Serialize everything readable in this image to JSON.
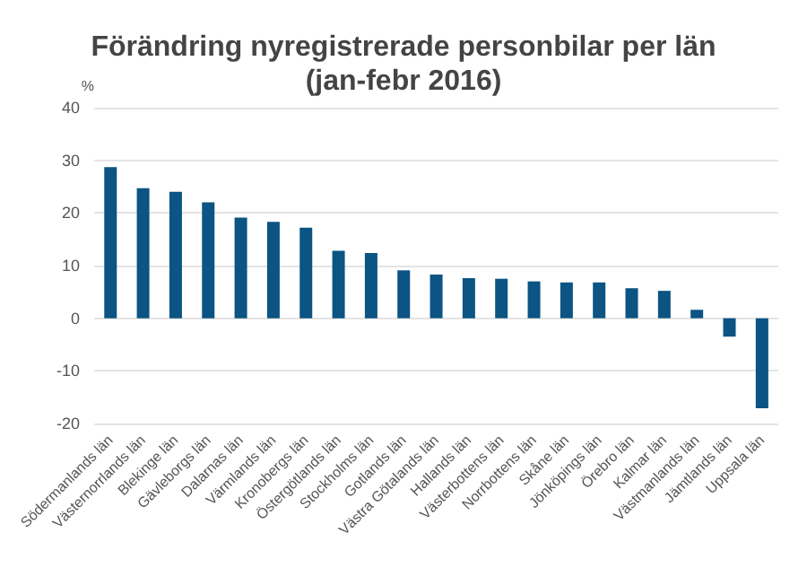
{
  "chart_data": {
    "type": "bar",
    "title": "Förändring nyregistrerade personbilar per län\n(jan-febr 2016)",
    "ylabel": "%",
    "categories": [
      "Södermanlands län",
      "Västernorrlands län",
      "Blekinge län",
      "Gävleborgs län",
      "Dalarnas län",
      "Värmlands län",
      "Kronobergs län",
      "Östergötlands län",
      "Stockholms län",
      "Gotlands län",
      "Västra Götalands län",
      "Hallands län",
      "Västerbottens län",
      "Norrbottens län",
      "Skåne län",
      "Jönköpings län",
      "Örebro län",
      "Kalmar län",
      "Västmanlands län",
      "Jämtlands län",
      "Uppsala län"
    ],
    "values": [
      28.7,
      24.7,
      24.0,
      22.0,
      19.1,
      18.3,
      17.2,
      12.8,
      12.4,
      9.1,
      8.3,
      7.6,
      7.5,
      7.0,
      6.8,
      6.8,
      5.7,
      5.2,
      1.6,
      -3.5,
      -17.1
    ],
    "color": "#0b5483",
    "ylim": [
      -20,
      40
    ],
    "yticks": [
      -20,
      -10,
      0,
      10,
      20,
      30,
      40
    ],
    "grid": "y"
  }
}
